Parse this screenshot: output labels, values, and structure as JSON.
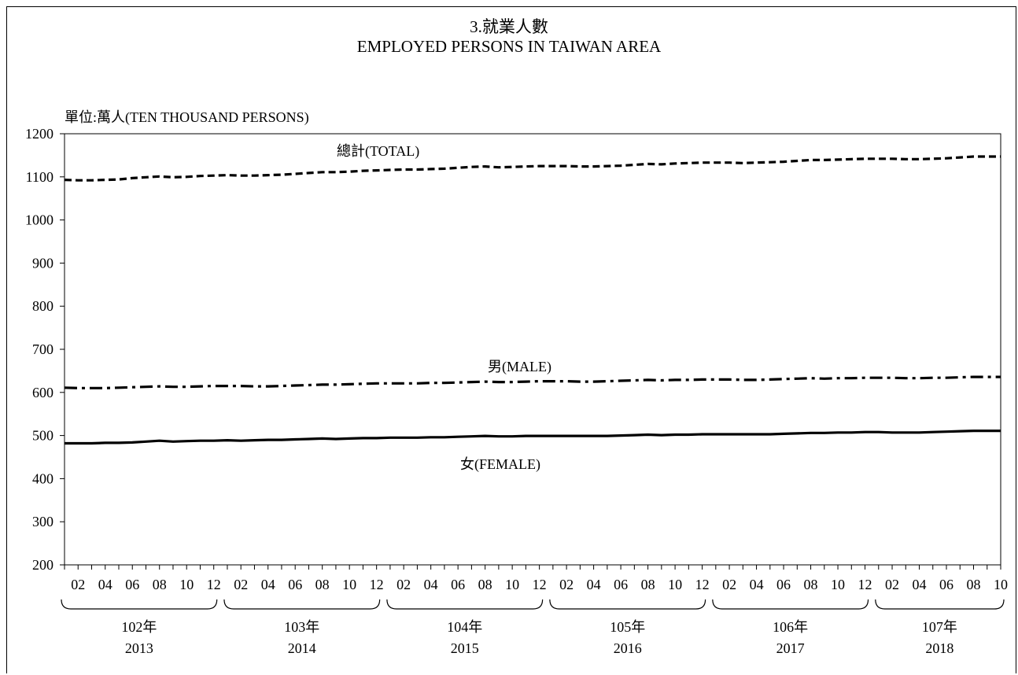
{
  "chart_data": {
    "type": "line",
    "title": "3.就業人數",
    "subtitle": "EMPLOYED PERSONS IN TAIWAN AREA",
    "ylabel": "單位:萬人(TEN THOUSAND PERSONS)",
    "xlabel": "",
    "ylim": [
      200,
      1200
    ],
    "yticks": [
      200,
      300,
      400,
      500,
      600,
      700,
      800,
      900,
      1000,
      1100,
      1200
    ],
    "grid": false,
    "x_start": "2013-01",
    "x_end": "2018-10",
    "month_tick_labels": [
      "02",
      "04",
      "06",
      "08",
      "10",
      "12"
    ],
    "last_year_month_tick_labels": [
      "02",
      "04",
      "06",
      "08",
      "10"
    ],
    "year_groups": [
      {
        "roc": "102年",
        "ad": "2013"
      },
      {
        "roc": "103年",
        "ad": "2014"
      },
      {
        "roc": "104年",
        "ad": "2015"
      },
      {
        "roc": "105年",
        "ad": "2016"
      },
      {
        "roc": "106年",
        "ad": "2017"
      },
      {
        "roc": "107年",
        "ad": "2018"
      }
    ],
    "series": [
      {
        "name": "總計(TOTAL)",
        "style": "dashed",
        "values": [
          1093,
          1092,
          1092,
          1093,
          1094,
          1097,
          1099,
          1101,
          1099,
          1100,
          1102,
          1103,
          1104,
          1103,
          1103,
          1104,
          1105,
          1107,
          1109,
          1111,
          1111,
          1112,
          1114,
          1115,
          1116,
          1117,
          1117,
          1118,
          1119,
          1121,
          1123,
          1124,
          1122,
          1123,
          1124,
          1125,
          1125,
          1125,
          1124,
          1124,
          1125,
          1126,
          1128,
          1130,
          1129,
          1131,
          1132,
          1133,
          1133,
          1133,
          1132,
          1133,
          1134,
          1135,
          1137,
          1139,
          1139,
          1140,
          1141,
          1142,
          1142,
          1142,
          1141,
          1141,
          1142,
          1143,
          1145,
          1147,
          1147,
          1147
        ]
      },
      {
        "name": "男(MALE)",
        "style": "dash-dot",
        "values": [
          611,
          610,
          610,
          610,
          611,
          612,
          613,
          614,
          613,
          613,
          614,
          615,
          615,
          615,
          614,
          614,
          615,
          616,
          617,
          618,
          618,
          619,
          620,
          621,
          621,
          621,
          621,
          622,
          622,
          623,
          624,
          625,
          624,
          624,
          625,
          626,
          626,
          626,
          625,
          625,
          626,
          627,
          628,
          629,
          628,
          629,
          629,
          630,
          630,
          630,
          629,
          629,
          630,
          631,
          632,
          633,
          632,
          633,
          633,
          634,
          634,
          634,
          633,
          633,
          634,
          634,
          635,
          636,
          636,
          636
        ]
      },
      {
        "name": "女(FEMALE)",
        "style": "solid",
        "values": [
          482,
          482,
          482,
          483,
          483,
          484,
          486,
          488,
          486,
          487,
          488,
          488,
          489,
          488,
          489,
          490,
          490,
          491,
          492,
          493,
          492,
          493,
          494,
          494,
          495,
          495,
          495,
          496,
          496,
          497,
          498,
          499,
          498,
          498,
          499,
          499,
          499,
          499,
          499,
          499,
          499,
          500,
          501,
          502,
          501,
          502,
          502,
          503,
          503,
          503,
          503,
          503,
          503,
          504,
          505,
          506,
          506,
          507,
          507,
          508,
          508,
          507,
          507,
          507,
          508,
          509,
          510,
          511,
          511,
          511
        ]
      }
    ]
  }
}
